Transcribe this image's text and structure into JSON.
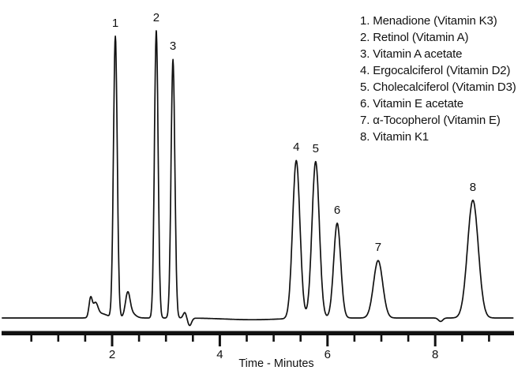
{
  "chart_data": {
    "type": "line",
    "subtype": "chromatogram",
    "title": "",
    "xlabel": "Time - Minutes",
    "ylabel": "",
    "grid": false,
    "legend_position": "top-right",
    "trace_color": "#111111",
    "x_axis": {
      "min": 0,
      "max": 9.45,
      "major_ticks": [
        2,
        4,
        6,
        8
      ],
      "major_tick_labels": [
        "2",
        "4",
        "6",
        "8"
      ],
      "minor_tick_interval": 0.5,
      "minor_tick_start": 0.5,
      "minor_tick_end": 9.0
    },
    "y_axis": {
      "visible": false,
      "units": "detector response (arbitrary units, unlabeled)"
    },
    "peaks": [
      {
        "number": "1",
        "name": "Menadione (Vitamin K3)",
        "retention_time_min": 2.06,
        "height_rel": 98,
        "width_sigma_min": 0.035
      },
      {
        "number": "2",
        "name": "Retinol (Vitamin A)",
        "retention_time_min": 2.82,
        "height_rel": 100,
        "width_sigma_min": 0.034
      },
      {
        "number": "3",
        "name": "Vitamin A acetate",
        "retention_time_min": 3.13,
        "height_rel": 90,
        "width_sigma_min": 0.035
      },
      {
        "number": "4",
        "name": "Ergocalciferol (Vitamin D2)",
        "retention_time_min": 5.42,
        "height_rel": 55,
        "width_sigma_min": 0.068
      },
      {
        "number": "5",
        "name": "Cholecalciferol (Vitamin D3)",
        "retention_time_min": 5.78,
        "height_rel": 54.5,
        "width_sigma_min": 0.068
      },
      {
        "number": "6",
        "name": "Vitamin E acetate",
        "retention_time_min": 6.18,
        "height_rel": 33,
        "width_sigma_min": 0.065
      },
      {
        "number": "7",
        "name": "α-Tocopherol (Vitamin E)",
        "retention_time_min": 6.94,
        "height_rel": 20,
        "width_sigma_min": 0.085
      },
      {
        "number": "8",
        "name": "Vitamin K1",
        "retention_time_min": 8.7,
        "height_rel": 41,
        "width_sigma_min": 0.1
      }
    ],
    "baseline_features": [
      {
        "t": 1.6,
        "h": 6.5,
        "sigma": 0.03
      },
      {
        "t": 1.69,
        "h": 4.5,
        "sigma": 0.045
      },
      {
        "t": 1.8,
        "h": 1.5,
        "sigma": 0.11
      },
      {
        "t": 2.29,
        "h": 7.5,
        "sigma": 0.042
      },
      {
        "t": 2.34,
        "h": 2.0,
        "sigma": 0.08
      },
      {
        "t": 3.35,
        "h": 2.0,
        "sigma": 0.03
      },
      {
        "t": 3.44,
        "h": -2.6,
        "sigma": 0.035
      },
      {
        "t": 4.6,
        "h": -0.6,
        "sigma": 0.5
      },
      {
        "t": 8.1,
        "h": -1.2,
        "sigma": 0.04
      }
    ]
  }
}
